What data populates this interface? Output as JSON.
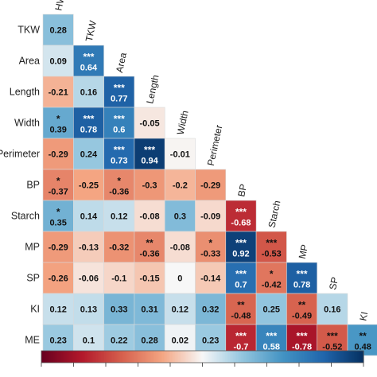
{
  "chart_data": {
    "type": "heatmap",
    "row_labels": [
      "TKW",
      "Area",
      "Length",
      "Width",
      "Perimeter",
      "BP",
      "Starch",
      "MP",
      "SP",
      "KI",
      "ME"
    ],
    "column_labels": [
      "HW",
      "TKW",
      "Area",
      "Length",
      "Width",
      "Perimeter",
      "BP",
      "Starch",
      "MP",
      "SP",
      "KI"
    ],
    "layout": "lower-triangle",
    "color_scale": {
      "min": -1,
      "max": 1,
      "low_color": "#67001f",
      "mid_color": "#f7f7f7",
      "high_color": "#053061"
    },
    "cells": [
      [
        {
          "v": "0.28",
          "s": ""
        }
      ],
      [
        {
          "v": "0.09",
          "s": ""
        },
        {
          "v": "0.64",
          "s": "***"
        }
      ],
      [
        {
          "v": "-0.21",
          "s": ""
        },
        {
          "v": "0.16",
          "s": ""
        },
        {
          "v": "0.77",
          "s": "***"
        }
      ],
      [
        {
          "v": "0.39",
          "s": "*"
        },
        {
          "v": "0.78",
          "s": "***"
        },
        {
          "v": "0.6",
          "s": "***"
        },
        {
          "v": "-0.05",
          "s": ""
        }
      ],
      [
        {
          "v": "-0.29",
          "s": ""
        },
        {
          "v": "0.24",
          "s": ""
        },
        {
          "v": "0.73",
          "s": "***"
        },
        {
          "v": "0.94",
          "s": "***"
        },
        {
          "v": "-0.01",
          "s": ""
        }
      ],
      [
        {
          "v": "-0.37",
          "s": "*"
        },
        {
          "v": "-0.25",
          "s": ""
        },
        {
          "v": "-0.36",
          "s": "*"
        },
        {
          "v": "-0.3",
          "s": ""
        },
        {
          "v": "-0.2",
          "s": ""
        },
        {
          "v": "-0.29",
          "s": ""
        }
      ],
      [
        {
          "v": "0.35",
          "s": "*"
        },
        {
          "v": "0.14",
          "s": ""
        },
        {
          "v": "0.12",
          "s": ""
        },
        {
          "v": "-0.08",
          "s": ""
        },
        {
          "v": "0.3",
          "s": ""
        },
        {
          "v": "-0.09",
          "s": ""
        },
        {
          "v": "-0.68",
          "s": "***"
        }
      ],
      [
        {
          "v": "-0.29",
          "s": ""
        },
        {
          "v": "-0.13",
          "s": ""
        },
        {
          "v": "-0.32",
          "s": ""
        },
        {
          "v": "-0.36",
          "s": "**"
        },
        {
          "v": "-0.08",
          "s": ""
        },
        {
          "v": "-0.33",
          "s": "*"
        },
        {
          "v": "0.92",
          "s": "***"
        },
        {
          "v": "-0.53",
          "s": "***"
        }
      ],
      [
        {
          "v": "-0.26",
          "s": ""
        },
        {
          "v": "-0.06",
          "s": ""
        },
        {
          "v": "-0.1",
          "s": ""
        },
        {
          "v": "-0.15",
          "s": ""
        },
        {
          "v": "0",
          "s": ""
        },
        {
          "v": "-0.14",
          "s": ""
        },
        {
          "v": "0.7",
          "s": "***"
        },
        {
          "v": "-0.42",
          "s": "*"
        },
        {
          "v": "0.78",
          "s": "***"
        }
      ],
      [
        {
          "v": "0.12",
          "s": ""
        },
        {
          "v": "0.13",
          "s": ""
        },
        {
          "v": "0.33",
          "s": ""
        },
        {
          "v": "0.31",
          "s": ""
        },
        {
          "v": "0.12",
          "s": ""
        },
        {
          "v": "0.32",
          "s": ""
        },
        {
          "v": "-0.48",
          "s": "**"
        },
        {
          "v": "0.25",
          "s": ""
        },
        {
          "v": "-0.49",
          "s": "**"
        },
        {
          "v": "0.16",
          "s": ""
        }
      ],
      [
        {
          "v": "0.23",
          "s": ""
        },
        {
          "v": "0.1",
          "s": ""
        },
        {
          "v": "0.22",
          "s": ""
        },
        {
          "v": "0.28",
          "s": ""
        },
        {
          "v": "0.02",
          "s": ""
        },
        {
          "v": "0.23",
          "s": ""
        },
        {
          "v": "-0.7",
          "s": "***"
        },
        {
          "v": "0.58",
          "s": "***"
        },
        {
          "v": "-0.78",
          "s": "***"
        },
        {
          "v": "-0.52",
          "s": "***"
        },
        {
          "v": "0.48",
          "s": "**"
        }
      ]
    ]
  }
}
